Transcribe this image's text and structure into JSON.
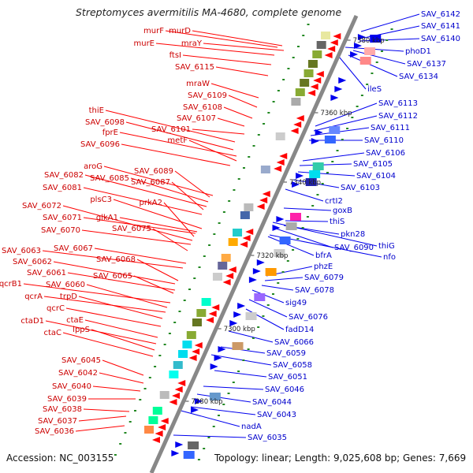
{
  "title": "Streptomyces avermitilis MA-4680, complete genome",
  "footer": {
    "accession": "Accession: NC_003155",
    "topology": "Topology: linear; Length: 9,025,608 bp; Genes: 7,669"
  },
  "colors": {
    "reverse_strand_labels": "#cc0000",
    "forward_strand_labels": "#0000cc",
    "backbone": "#888888",
    "reverse_arrow": "#ff0000",
    "forward_arrow": "#0000ee"
  },
  "tick_labels": [
    "7380 kbp",
    "7360 kbp",
    "7340 kbp",
    "7320 kbp",
    "7300 kbp",
    "7280 kbp"
  ],
  "left_genes": [
    "murF",
    "murD",
    "murE",
    "mraY",
    "ftsI",
    "SAV_6115",
    "mraW",
    "SAV_6109",
    "SAV_6108",
    "thiE",
    "SAV_6107",
    "SAV_6098",
    "fprE",
    "SAV_6101",
    "metF",
    "SAV_6096",
    "aroG",
    "SAV_6089",
    "SAV_6082",
    "SAV_6085",
    "SAV_6087",
    "SAV_6081",
    "plsC3",
    "prkA2",
    "SAV_6072",
    "SAV_6071",
    "glkA1",
    "SAV_6070",
    "SAV_6075",
    "SAV_6063",
    "SAV_6067",
    "SAV_6068",
    "SAV_6062",
    "SAV_6061",
    "SAV_6065",
    "qcrB1",
    "SAV_6060",
    "qcrA",
    "trpD",
    "qcrC",
    "ctaE",
    "ctaD1",
    "lppS",
    "ctaC",
    "SAV_6045",
    "SAV_6042",
    "SAV_6040",
    "SAV_6039",
    "SAV_6038",
    "SAV_6037",
    "SAV_6036"
  ],
  "right_genes": [
    "SAV_6142",
    "SAV_6141",
    "SAV_6140",
    "phoD1",
    "SAV_6137",
    "SAV_6134",
    "ileS",
    "SAV_6113",
    "SAV_6112",
    "SAV_6111",
    "SAV_6110",
    "SAV_6106",
    "SAV_6105",
    "SAV_6104",
    "SAV_6103",
    "crtI2",
    "goxB",
    "thiS",
    "pkn28",
    "thiG",
    "SAV_6090",
    "bfrA",
    "nfo",
    "phzE",
    "SAV_6079",
    "SAV_6078",
    "sig49",
    "SAV_6076",
    "fadD14",
    "SAV_6066",
    "SAV_6059",
    "SAV_6058",
    "SAV_6051",
    "SAV_6046",
    "SAV_6044",
    "SAV_6043",
    "nadA",
    "SAV_6035"
  ]
}
